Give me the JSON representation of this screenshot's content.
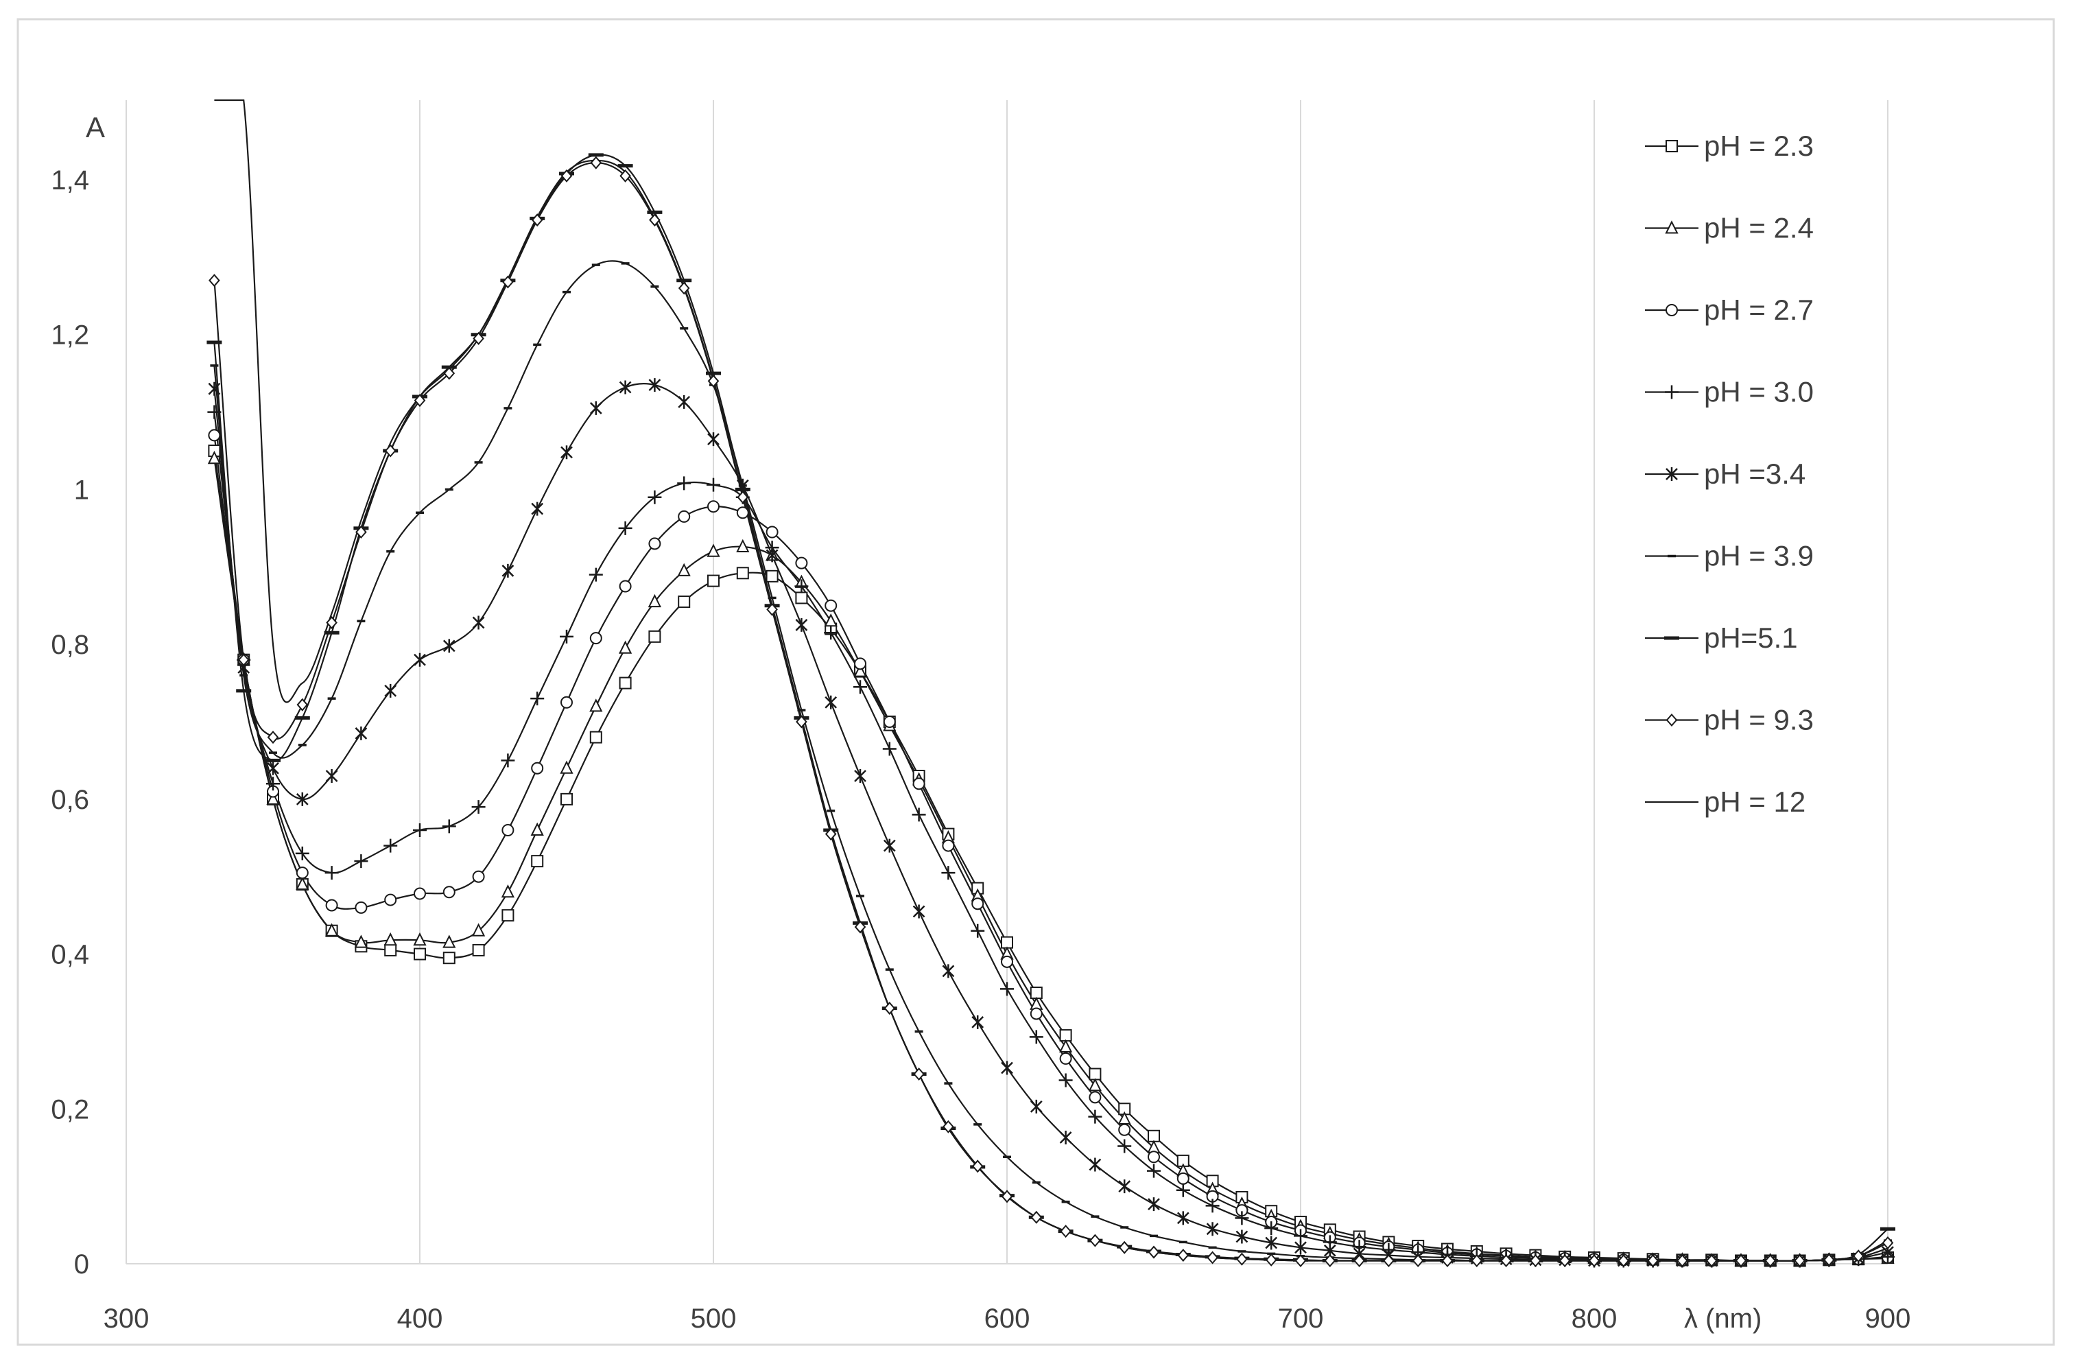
{
  "chart_data": {
    "type": "line",
    "title": "",
    "xlabel": "λ (nm)",
    "ylabel": "A",
    "xlim": [
      300,
      900
    ],
    "ylim": [
      0,
      1.5
    ],
    "x_ticks": [
      "300",
      "400",
      "500",
      "600",
      "700",
      "800",
      "900"
    ],
    "y_ticks": [
      "0",
      "0,2",
      "0,4",
      "0,6",
      "0,8",
      "1",
      "1,2",
      "1,4"
    ],
    "grid": "vertical",
    "legend_position": "right",
    "colors": {
      "line": "#1a1a1a",
      "grid": "#d9d9d9",
      "text": "#404040",
      "frame": "#d9d9d9"
    },
    "x": [
      330,
      340,
      350,
      360,
      370,
      380,
      390,
      400,
      410,
      420,
      430,
      440,
      450,
      460,
      470,
      480,
      490,
      500,
      510,
      520,
      530,
      540,
      550,
      560,
      570,
      580,
      590,
      600,
      610,
      620,
      630,
      640,
      650,
      660,
      670,
      680,
      690,
      700,
      710,
      720,
      730,
      740,
      750,
      760,
      770,
      780,
      790,
      800,
      810,
      820,
      830,
      840,
      850,
      860,
      870,
      880,
      890,
      900
    ],
    "series": [
      {
        "name": "pH = 2.3",
        "marker": "square",
        "values": [
          1.05,
          0.78,
          0.6,
          0.49,
          0.43,
          0.41,
          0.405,
          0.4,
          0.395,
          0.405,
          0.45,
          0.52,
          0.6,
          0.68,
          0.75,
          0.81,
          0.855,
          0.882,
          0.892,
          0.888,
          0.86,
          0.82,
          0.765,
          0.7,
          0.63,
          0.555,
          0.485,
          0.415,
          0.35,
          0.295,
          0.245,
          0.2,
          0.165,
          0.133,
          0.107,
          0.086,
          0.068,
          0.054,
          0.044,
          0.035,
          0.028,
          0.023,
          0.019,
          0.016,
          0.013,
          0.011,
          0.009,
          0.008,
          0.007,
          0.006,
          0.005,
          0.005,
          0.004,
          0.004,
          0.004,
          0.005,
          0.006,
          0.008
        ]
      },
      {
        "name": "pH = 2.4",
        "marker": "triangle",
        "values": [
          1.04,
          0.78,
          0.6,
          0.49,
          0.43,
          0.415,
          0.418,
          0.418,
          0.415,
          0.43,
          0.48,
          0.56,
          0.64,
          0.72,
          0.795,
          0.855,
          0.895,
          0.92,
          0.926,
          0.915,
          0.88,
          0.83,
          0.765,
          0.695,
          0.625,
          0.55,
          0.475,
          0.4,
          0.335,
          0.28,
          0.23,
          0.187,
          0.15,
          0.12,
          0.096,
          0.077,
          0.061,
          0.048,
          0.039,
          0.031,
          0.025,
          0.02,
          0.016,
          0.013,
          0.011,
          0.009,
          0.008,
          0.007,
          0.006,
          0.005,
          0.005,
          0.004,
          0.004,
          0.004,
          0.004,
          0.005,
          0.006,
          0.007
        ]
      },
      {
        "name": "pH = 2.7",
        "marker": "circle",
        "values": [
          1.07,
          0.78,
          0.61,
          0.505,
          0.463,
          0.46,
          0.47,
          0.478,
          0.48,
          0.5,
          0.56,
          0.64,
          0.725,
          0.808,
          0.875,
          0.93,
          0.965,
          0.978,
          0.97,
          0.945,
          0.905,
          0.85,
          0.775,
          0.7,
          0.62,
          0.54,
          0.465,
          0.39,
          0.323,
          0.265,
          0.215,
          0.173,
          0.138,
          0.11,
          0.087,
          0.069,
          0.054,
          0.043,
          0.034,
          0.027,
          0.022,
          0.018,
          0.014,
          0.012,
          0.01,
          0.008,
          0.007,
          0.006,
          0.005,
          0.005,
          0.004,
          0.004,
          0.004,
          0.004,
          0.004,
          0.005,
          0.006,
          0.008
        ]
      },
      {
        "name": "pH = 3.0",
        "marker": "plus",
        "values": [
          1.1,
          0.78,
          0.62,
          0.53,
          0.505,
          0.52,
          0.54,
          0.56,
          0.565,
          0.59,
          0.65,
          0.73,
          0.81,
          0.89,
          0.95,
          0.99,
          1.008,
          1.006,
          0.99,
          0.925,
          0.875,
          0.815,
          0.745,
          0.665,
          0.58,
          0.505,
          0.43,
          0.355,
          0.293,
          0.237,
          0.19,
          0.152,
          0.12,
          0.095,
          0.075,
          0.059,
          0.046,
          0.036,
          0.028,
          0.022,
          0.018,
          0.015,
          0.012,
          0.01,
          0.008,
          0.007,
          0.006,
          0.005,
          0.005,
          0.004,
          0.004,
          0.004,
          0.004,
          0.004,
          0.004,
          0.005,
          0.006,
          0.009
        ]
      },
      {
        "name": "pH =3.4",
        "marker": "asterisk",
        "values": [
          1.13,
          0.77,
          0.64,
          0.6,
          0.63,
          0.685,
          0.74,
          0.78,
          0.798,
          0.828,
          0.895,
          0.975,
          1.048,
          1.105,
          1.132,
          1.135,
          1.113,
          1.065,
          1.005,
          0.915,
          0.825,
          0.725,
          0.63,
          0.54,
          0.455,
          0.378,
          0.312,
          0.253,
          0.203,
          0.163,
          0.128,
          0.1,
          0.077,
          0.059,
          0.045,
          0.035,
          0.027,
          0.021,
          0.017,
          0.013,
          0.011,
          0.009,
          0.008,
          0.007,
          0.006,
          0.005,
          0.005,
          0.004,
          0.004,
          0.004,
          0.004,
          0.004,
          0.004,
          0.004,
          0.004,
          0.005,
          0.007,
          0.015
        ]
      },
      {
        "name": "pH = 3.9",
        "marker": "dash",
        "values": [
          1.16,
          0.76,
          0.66,
          0.67,
          0.73,
          0.83,
          0.92,
          0.97,
          1.0,
          1.035,
          1.105,
          1.187,
          1.255,
          1.29,
          1.292,
          1.262,
          1.208,
          1.135,
          1.005,
          0.86,
          0.715,
          0.585,
          0.475,
          0.38,
          0.3,
          0.233,
          0.18,
          0.138,
          0.105,
          0.08,
          0.061,
          0.047,
          0.036,
          0.028,
          0.021,
          0.016,
          0.013,
          0.01,
          0.008,
          0.007,
          0.006,
          0.005,
          0.005,
          0.004,
          0.004,
          0.004,
          0.004,
          0.004,
          0.004,
          0.004,
          0.004,
          0.004,
          0.004,
          0.004,
          0.004,
          0.005,
          0.01,
          0.03
        ]
      },
      {
        "name": "pH=5.1",
        "marker": "bar",
        "values": [
          1.19,
          0.74,
          0.65,
          0.705,
          0.815,
          0.95,
          1.05,
          1.12,
          1.158,
          1.2,
          1.27,
          1.35,
          1.408,
          1.432,
          1.418,
          1.358,
          1.27,
          1.15,
          1.0,
          0.85,
          0.705,
          0.56,
          0.44,
          0.33,
          0.245,
          0.175,
          0.125,
          0.088,
          0.06,
          0.042,
          0.03,
          0.022,
          0.016,
          0.012,
          0.009,
          0.007,
          0.006,
          0.005,
          0.004,
          0.004,
          0.004,
          0.004,
          0.004,
          0.004,
          0.004,
          0.004,
          0.004,
          0.004,
          0.004,
          0.004,
          0.004,
          0.004,
          0.004,
          0.004,
          0.004,
          0.005,
          0.012,
          0.045
        ]
      },
      {
        "name": "pH = 9.3",
        "marker": "diamond",
        "values": [
          1.27,
          0.78,
          0.68,
          0.722,
          0.828,
          0.945,
          1.05,
          1.115,
          1.15,
          1.195,
          1.268,
          1.348,
          1.405,
          1.422,
          1.405,
          1.348,
          1.26,
          1.14,
          0.99,
          0.845,
          0.7,
          0.555,
          0.435,
          0.33,
          0.245,
          0.177,
          0.126,
          0.087,
          0.06,
          0.042,
          0.03,
          0.021,
          0.015,
          0.011,
          0.008,
          0.006,
          0.005,
          0.004,
          0.004,
          0.004,
          0.004,
          0.004,
          0.004,
          0.004,
          0.004,
          0.004,
          0.004,
          0.004,
          0.004,
          0.004,
          0.004,
          0.004,
          0.004,
          0.004,
          0.004,
          0.005,
          0.01,
          0.027
        ]
      },
      {
        "name": "pH = 12",
        "marker": "none",
        "values": [
          1.6,
          1.6,
          0.8,
          0.75,
          0.84,
          0.96,
          1.06,
          1.12,
          1.155,
          1.2,
          1.272,
          1.352,
          1.41,
          1.425,
          1.41,
          1.35,
          1.262,
          1.142,
          0.992,
          0.845,
          0.7,
          0.556,
          0.436,
          0.33,
          0.245,
          0.177,
          0.126,
          0.087,
          0.06,
          0.042,
          0.03,
          0.021,
          0.015,
          0.011,
          0.008,
          0.006,
          0.005,
          0.004,
          0.004,
          0.004,
          0.004,
          0.004,
          0.004,
          0.004,
          0.004,
          0.004,
          0.004,
          0.004,
          0.004,
          0.004,
          0.004,
          0.004,
          0.004,
          0.004,
          0.004,
          0.005,
          0.008,
          0.02
        ]
      }
    ]
  }
}
